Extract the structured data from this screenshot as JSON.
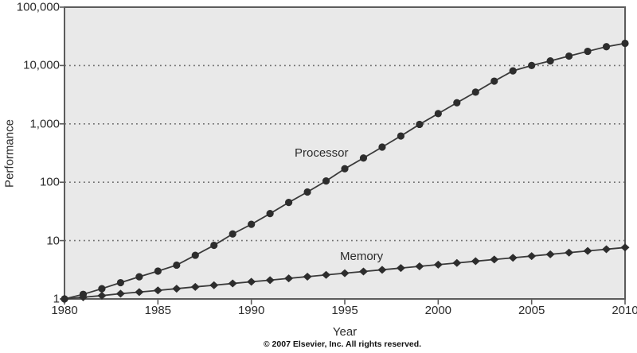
{
  "figure": {
    "y_axis_title": "Performance",
    "x_axis_title": "Year",
    "copyright": "© 2007 Elsevier, Inc. All rights reserved."
  },
  "chart_data": {
    "type": "line",
    "title": "",
    "xlabel": "Year",
    "ylabel": "Performance",
    "y_scale": "log",
    "xlim": [
      1980,
      2010
    ],
    "ylim": [
      1,
      100000
    ],
    "grid": "horizontal dotted gridlines at powers of 10",
    "legend_position": "inline labels next to lines",
    "x_tick_values": [
      1980,
      1985,
      1990,
      1995,
      2000,
      2005,
      2010
    ],
    "x_tick_labels": [
      "1980",
      "1985",
      "1990",
      "1995",
      "2000",
      "2005",
      "2010"
    ],
    "y_tick_values": [
      1,
      10,
      100,
      1000,
      10000,
      100000
    ],
    "y_tick_labels": [
      "1",
      "10",
      "100",
      "1,000",
      "10,000",
      "100,000"
    ],
    "gridline_values": [
      10,
      100,
      1000,
      10000
    ],
    "x": [
      1980,
      1981,
      1982,
      1983,
      1984,
      1985,
      1986,
      1987,
      1988,
      1989,
      1990,
      1991,
      1992,
      1993,
      1994,
      1995,
      1996,
      1997,
      1998,
      1999,
      2000,
      2001,
      2002,
      2003,
      2004,
      2005,
      2006,
      2007,
      2008,
      2009,
      2010
    ],
    "series": [
      {
        "name": "Processor",
        "marker": "circle",
        "values": [
          1,
          1.2,
          1.5,
          1.9,
          2.4,
          3.0,
          3.8,
          5.6,
          8.3,
          13,
          19,
          29,
          45,
          68,
          105,
          170,
          260,
          400,
          620,
          980,
          1500,
          2300,
          3500,
          5400,
          8100,
          10000,
          12000,
          14500,
          17500,
          21000,
          24000
        ]
      },
      {
        "name": "Memory",
        "marker": "diamond",
        "values": [
          1,
          1.07,
          1.14,
          1.23,
          1.31,
          1.4,
          1.5,
          1.61,
          1.72,
          1.84,
          1.97,
          2.1,
          2.25,
          2.41,
          2.58,
          2.76,
          2.95,
          3.16,
          3.38,
          3.62,
          3.87,
          4.14,
          4.43,
          4.74,
          5.07,
          5.43,
          5.81,
          6.21,
          6.65,
          7.11,
          7.61
        ]
      }
    ],
    "colors": {
      "plot_background": "#e9e9e9",
      "frame": "#5c5c5c",
      "gridline": "#6e6e6e",
      "line": "#3a3a3a",
      "marker": "#2d2d2d",
      "text": "#2b2b2b"
    }
  }
}
